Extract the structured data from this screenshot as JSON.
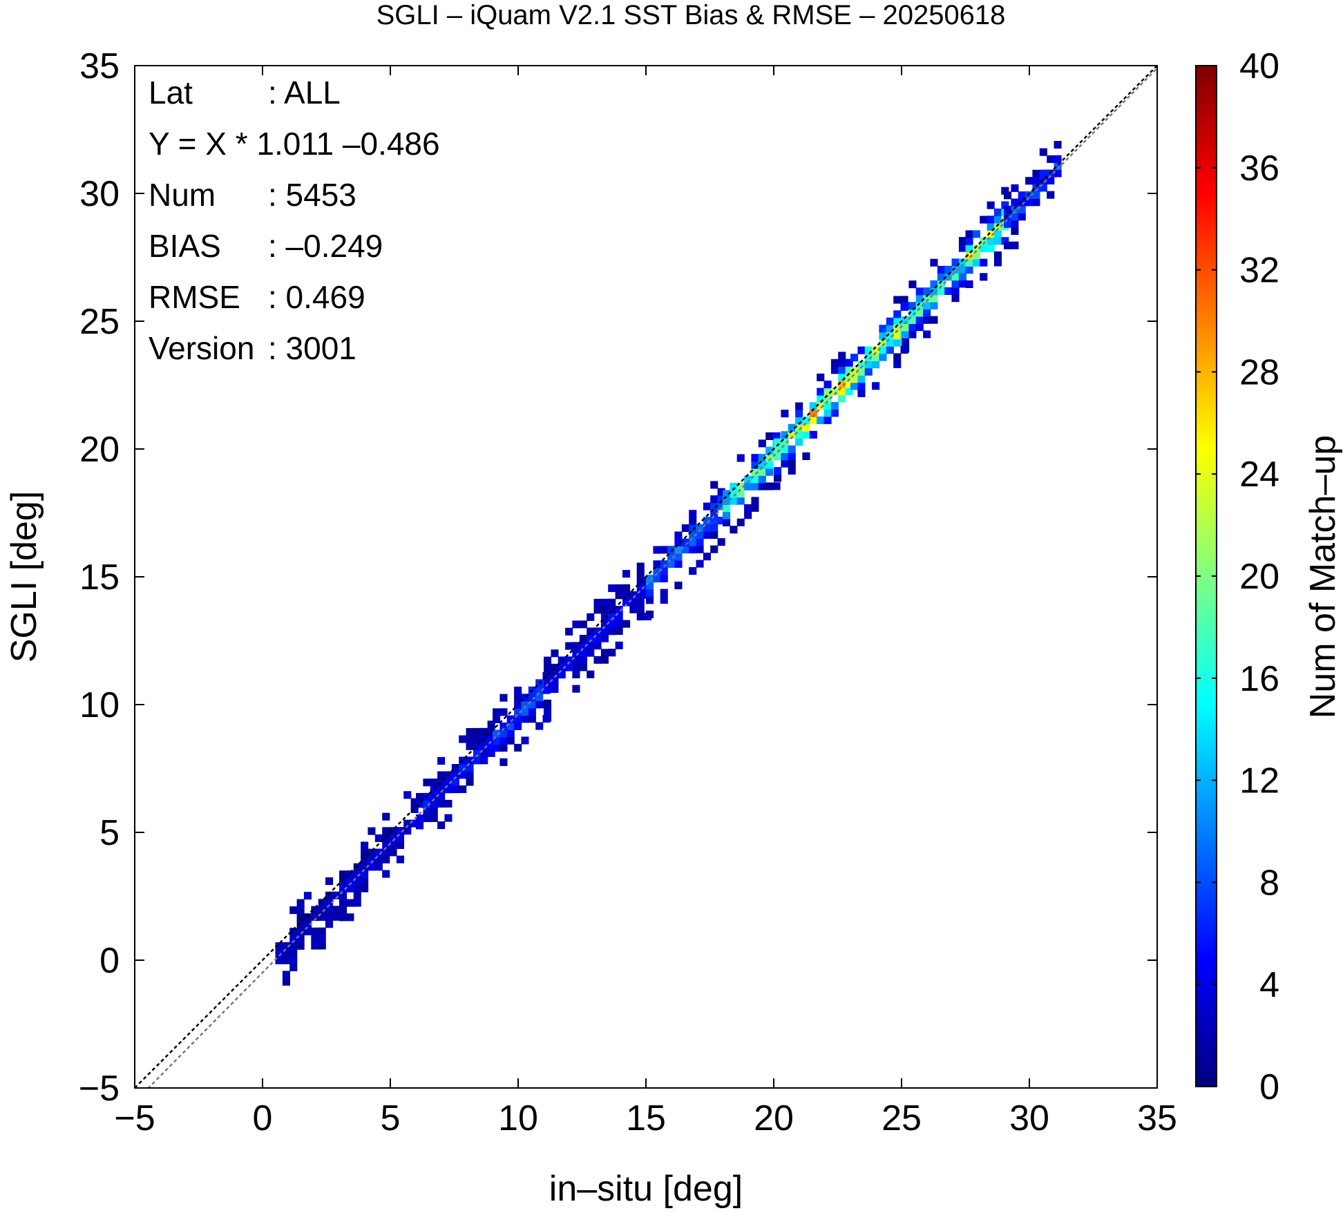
{
  "chart_data": {
    "type": "heatmap",
    "title": "SGLI – iQuam V2.1 SST Bias & RMSE  – 20250618",
    "xlabel": "in–situ [deg]",
    "ylabel": "SGLI [deg]",
    "xlim": [
      -5,
      35
    ],
    "ylim": [
      -5,
      35
    ],
    "xticks": [
      "−5",
      "0",
      "5",
      "10",
      "15",
      "20",
      "25",
      "30",
      "35"
    ],
    "yticks": [
      "−5",
      "0",
      "5",
      "10",
      "15",
      "20",
      "25",
      "30",
      "35"
    ],
    "colorbar": {
      "label": "Num of Match–up",
      "range": [
        0,
        40
      ],
      "ticks": [
        "0",
        "4",
        "8",
        "12",
        "16",
        "20",
        "24",
        "28",
        "32",
        "36",
        "40"
      ]
    },
    "reference_lines": [
      {
        "kind": "one-to-one",
        "slope": 1,
        "intercept": 0,
        "style": "dashed",
        "color": "#000000"
      },
      {
        "kind": "regression",
        "slope": 1.011,
        "intercept": -0.486,
        "style": "dashed",
        "color": "#777777"
      }
    ],
    "annotations": [
      {
        "key": "Lat",
        "value": ": ALL"
      },
      {
        "key": "Y = X * 1.011 –0.486",
        "value": ""
      },
      {
        "key": "Num",
        "value": ": 5453"
      },
      {
        "key": "BIAS",
        "value": ": –0.249"
      },
      {
        "key": "RMSE",
        "value": ": 0.469"
      },
      {
        "key": "Version",
        "value": ": 3001"
      }
    ],
    "density_segments": [
      {
        "x": [
          0.5,
          3.0
        ],
        "count": 3
      },
      {
        "x": [
          3.0,
          6.0
        ],
        "count": 4
      },
      {
        "x": [
          6.0,
          9.0
        ],
        "count": 6
      },
      {
        "x": [
          9.0,
          11.0
        ],
        "count": 8
      },
      {
        "x": [
          11.0,
          15.0
        ],
        "count": 5
      },
      {
        "x": [
          15.0,
          18.0
        ],
        "count": 10
      },
      {
        "x": [
          18.0,
          20.0
        ],
        "count": 18
      },
      {
        "x": [
          20.0,
          23.0
        ],
        "count": 26
      },
      {
        "x": [
          23.0,
          25.0
        ],
        "count": 22
      },
      {
        "x": [
          25.0,
          27.5
        ],
        "count": 18
      },
      {
        "x": [
          27.5,
          29.0
        ],
        "count": 24
      },
      {
        "x": [
          29.0,
          31.0
        ],
        "count": 8
      }
    ],
    "grid": false,
    "colormap": [
      "#00008f",
      "#0000ff",
      "#0080ff",
      "#00ffff",
      "#80ff80",
      "#ffff00",
      "#ff8000",
      "#ff0000",
      "#800000"
    ]
  }
}
